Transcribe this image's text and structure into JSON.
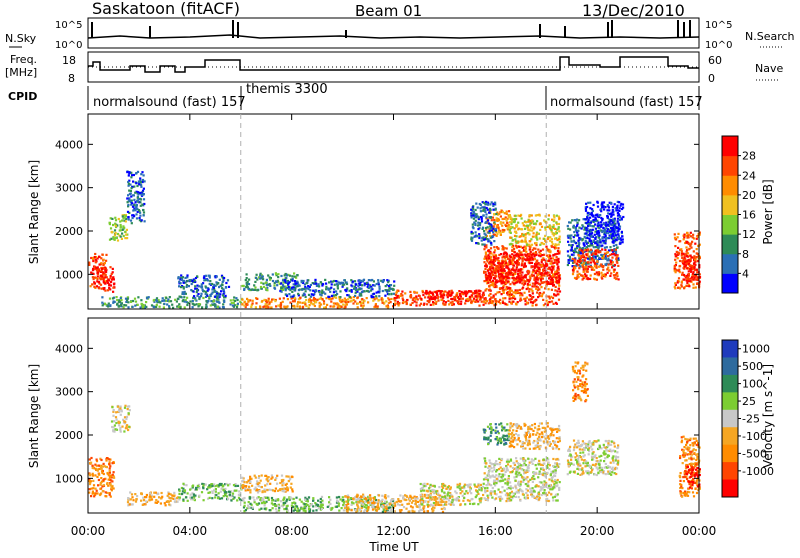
{
  "header": {
    "station": "Saskatoon (fitACF)",
    "beam": "Beam 01",
    "date": "13/Dec/2010"
  },
  "panel_labels": {
    "nsky": "N.Sky",
    "nsky_tick_top": "10^5",
    "nsky_tick_bottom": "10^0",
    "nsearch": "N.Search",
    "nsearch_tick_top": "10^5",
    "nsearch_tick_bottom": "10^0",
    "freq_line1": "Freq.",
    "freq_line2": "[MHz]",
    "freq_tick_top": "18",
    "freq_tick_bottom": "8",
    "nave": "Nave",
    "nave_tick_top": "60",
    "nave_tick_bottom": "0",
    "cpid": "CPID"
  },
  "cpid_segments": [
    {
      "label": "normalsound (fast) 157",
      "start_hour": 0
    },
    {
      "label": "themis 3300",
      "start_hour": 6
    },
    {
      "label": "normalsound (fast) 157",
      "start_hour": 18
    }
  ],
  "colors": {
    "power": [
      "#0000ff",
      "#2a6fb5",
      "#2e8b57",
      "#7ccd32",
      "#f0c020",
      "#ff8c00",
      "#ff4500",
      "#ff0000"
    ],
    "velocity": [
      "#1f3bbd",
      "#2e6b9e",
      "#2e8b57",
      "#7ccd32",
      "#c8c8c8",
      "#f5a623",
      "#ff8c00",
      "#ff4500",
      "#ff0000"
    ],
    "dashed_marker": "#b0b0b0"
  },
  "chart_data": [
    {
      "type": "heatmap",
      "name": "power",
      "ylabel": "Slant Range [km]",
      "ylim": [
        200,
        4700
      ],
      "yticks": [
        1000,
        2000,
        3000,
        4000
      ],
      "xlim_hours": [
        0,
        24
      ],
      "colorbar_label": "Power [dB]",
      "colorbar_ticks": [
        "4",
        "8",
        "12",
        "16",
        "20",
        "24",
        "28"
      ],
      "regions": [
        {
          "t0": 0.0,
          "t1": 0.7,
          "r0": 700,
          "r1": 1500,
          "lvl": 6
        },
        {
          "t0": 0.3,
          "t1": 1.0,
          "r0": 600,
          "r1": 1200,
          "lvl": 7
        },
        {
          "t0": 0.8,
          "t1": 1.5,
          "r0": 1800,
          "r1": 2400,
          "lvl": 3
        },
        {
          "t0": 1.5,
          "t1": 2.2,
          "r0": 2200,
          "r1": 3400,
          "lvl": 1
        },
        {
          "t0": 0.5,
          "t1": 6.0,
          "r0": 250,
          "r1": 500,
          "lvl": 2
        },
        {
          "t0": 3.5,
          "t1": 5.5,
          "r0": 500,
          "r1": 1000,
          "lvl": 1
        },
        {
          "t0": 6.0,
          "t1": 8.2,
          "r0": 650,
          "r1": 1050,
          "lvl": 2
        },
        {
          "t0": 6.0,
          "t1": 12.0,
          "r0": 250,
          "r1": 500,
          "lvl": 5
        },
        {
          "t0": 7.5,
          "t1": 12.0,
          "r0": 500,
          "r1": 900,
          "lvl": 1
        },
        {
          "t0": 12.0,
          "t1": 15.5,
          "r0": 300,
          "r1": 650,
          "lvl": 6
        },
        {
          "t0": 13.2,
          "t1": 15.6,
          "r0": 450,
          "r1": 650,
          "lvl": 7
        },
        {
          "t0": 15.5,
          "t1": 18.5,
          "r0": 300,
          "r1": 1700,
          "lvl": 6
        },
        {
          "t0": 15.6,
          "t1": 18.5,
          "r0": 800,
          "r1": 1500,
          "lvl": 7
        },
        {
          "t0": 15.6,
          "t1": 16.5,
          "r0": 1900,
          "r1": 2500,
          "lvl": 5
        },
        {
          "t0": 16.5,
          "t1": 18.5,
          "r0": 1700,
          "r1": 2400,
          "lvl": 4
        },
        {
          "t0": 15.0,
          "t1": 16.0,
          "r0": 1700,
          "r1": 2700,
          "lvl": 1
        },
        {
          "t0": 18.8,
          "t1": 20.8,
          "r0": 1200,
          "r1": 2300,
          "lvl": 1
        },
        {
          "t0": 19.0,
          "t1": 20.8,
          "r0": 900,
          "r1": 1600,
          "lvl": 6
        },
        {
          "t0": 19.5,
          "t1": 21.0,
          "r0": 1700,
          "r1": 2700,
          "lvl": 0
        },
        {
          "t0": 23.0,
          "t1": 24.0,
          "r0": 700,
          "r1": 2000,
          "lvl": 6
        },
        {
          "t0": 23.3,
          "t1": 24.0,
          "r0": 900,
          "r1": 1500,
          "lvl": 7
        }
      ]
    },
    {
      "type": "heatmap",
      "name": "velocity",
      "ylabel": "Slant Range [km]",
      "xlabel": "Time UT",
      "ylim": [
        200,
        4700
      ],
      "yticks": [
        1000,
        2000,
        3000,
        4000
      ],
      "xlim_hours": [
        0,
        24
      ],
      "xticks": [
        "00:00",
        "04:00",
        "08:00",
        "12:00",
        "16:00",
        "20:00",
        "00:00"
      ],
      "colorbar_label": "Velocity [m s^-1]",
      "colorbar_ticks": [
        "1000",
        "500",
        "100",
        "25",
        "-25",
        "-100",
        "-500",
        "-1000"
      ],
      "regions": [
        {
          "t0": 0.0,
          "t1": 1.0,
          "r0": 600,
          "r1": 1500,
          "lvl": 6
        },
        {
          "t0": 0.9,
          "t1": 1.6,
          "r0": 2100,
          "r1": 2700,
          "lvl": 4
        },
        {
          "t0": 1.5,
          "t1": 3.5,
          "r0": 400,
          "r1": 700,
          "lvl": 5
        },
        {
          "t0": 3.5,
          "t1": 6.0,
          "r0": 500,
          "r1": 900,
          "lvl": 3
        },
        {
          "t0": 6.0,
          "t1": 8.0,
          "r0": 700,
          "r1": 1100,
          "lvl": 5
        },
        {
          "t0": 6.0,
          "t1": 12.0,
          "r0": 250,
          "r1": 600,
          "lvl": 3
        },
        {
          "t0": 10.0,
          "t1": 14.0,
          "r0": 250,
          "r1": 650,
          "lvl": 5
        },
        {
          "t0": 13.0,
          "t1": 15.5,
          "r0": 400,
          "r1": 900,
          "lvl": 4
        },
        {
          "t0": 15.5,
          "t1": 18.5,
          "r0": 500,
          "r1": 1500,
          "lvl": 4
        },
        {
          "t0": 15.5,
          "t1": 16.5,
          "r0": 1800,
          "r1": 2300,
          "lvl": 2
        },
        {
          "t0": 16.5,
          "t1": 18.5,
          "r0": 1700,
          "r1": 2300,
          "lvl": 5
        },
        {
          "t0": 18.8,
          "t1": 20.8,
          "r0": 1100,
          "r1": 1900,
          "lvl": 4
        },
        {
          "t0": 19.0,
          "t1": 19.6,
          "r0": 2800,
          "r1": 3700,
          "lvl": 6
        },
        {
          "t0": 23.2,
          "t1": 24.0,
          "r0": 600,
          "r1": 2000,
          "lvl": 6
        },
        {
          "t0": 23.4,
          "t1": 24.0,
          "r0": 800,
          "r1": 1300,
          "lvl": 8
        }
      ]
    }
  ],
  "dashed_marker_hours": [
    6.0,
    18.0
  ]
}
